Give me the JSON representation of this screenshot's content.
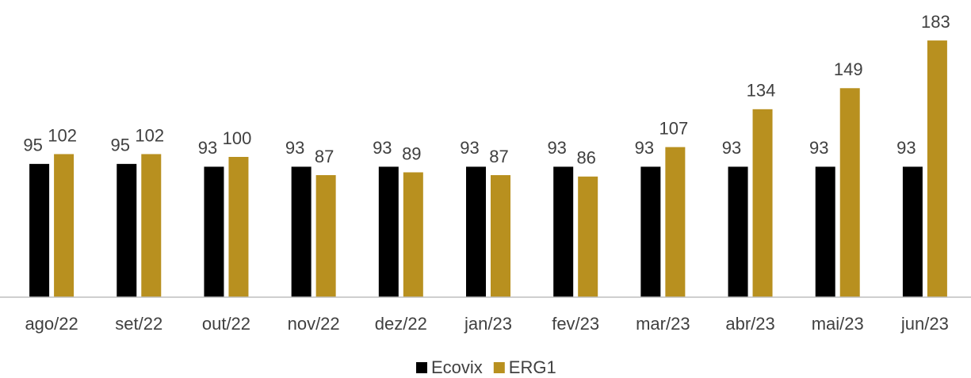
{
  "chart_data": {
    "type": "bar",
    "categories": [
      "ago/22",
      "set/22",
      "out/22",
      "nov/22",
      "dez/22",
      "jan/23",
      "fev/23",
      "mar/23",
      "abr/23",
      "mai/23",
      "jun/23"
    ],
    "series": [
      {
        "name": "Ecovix",
        "color": "#000000",
        "values": [
          95,
          95,
          93,
          93,
          93,
          93,
          93,
          93,
          93,
          93,
          93
        ]
      },
      {
        "name": "ERG1",
        "color": "#b8901f",
        "values": [
          102,
          102,
          100,
          87,
          89,
          87,
          86,
          107,
          134,
          149,
          183
        ]
      }
    ],
    "ylim": [
      0,
      200
    ]
  }
}
